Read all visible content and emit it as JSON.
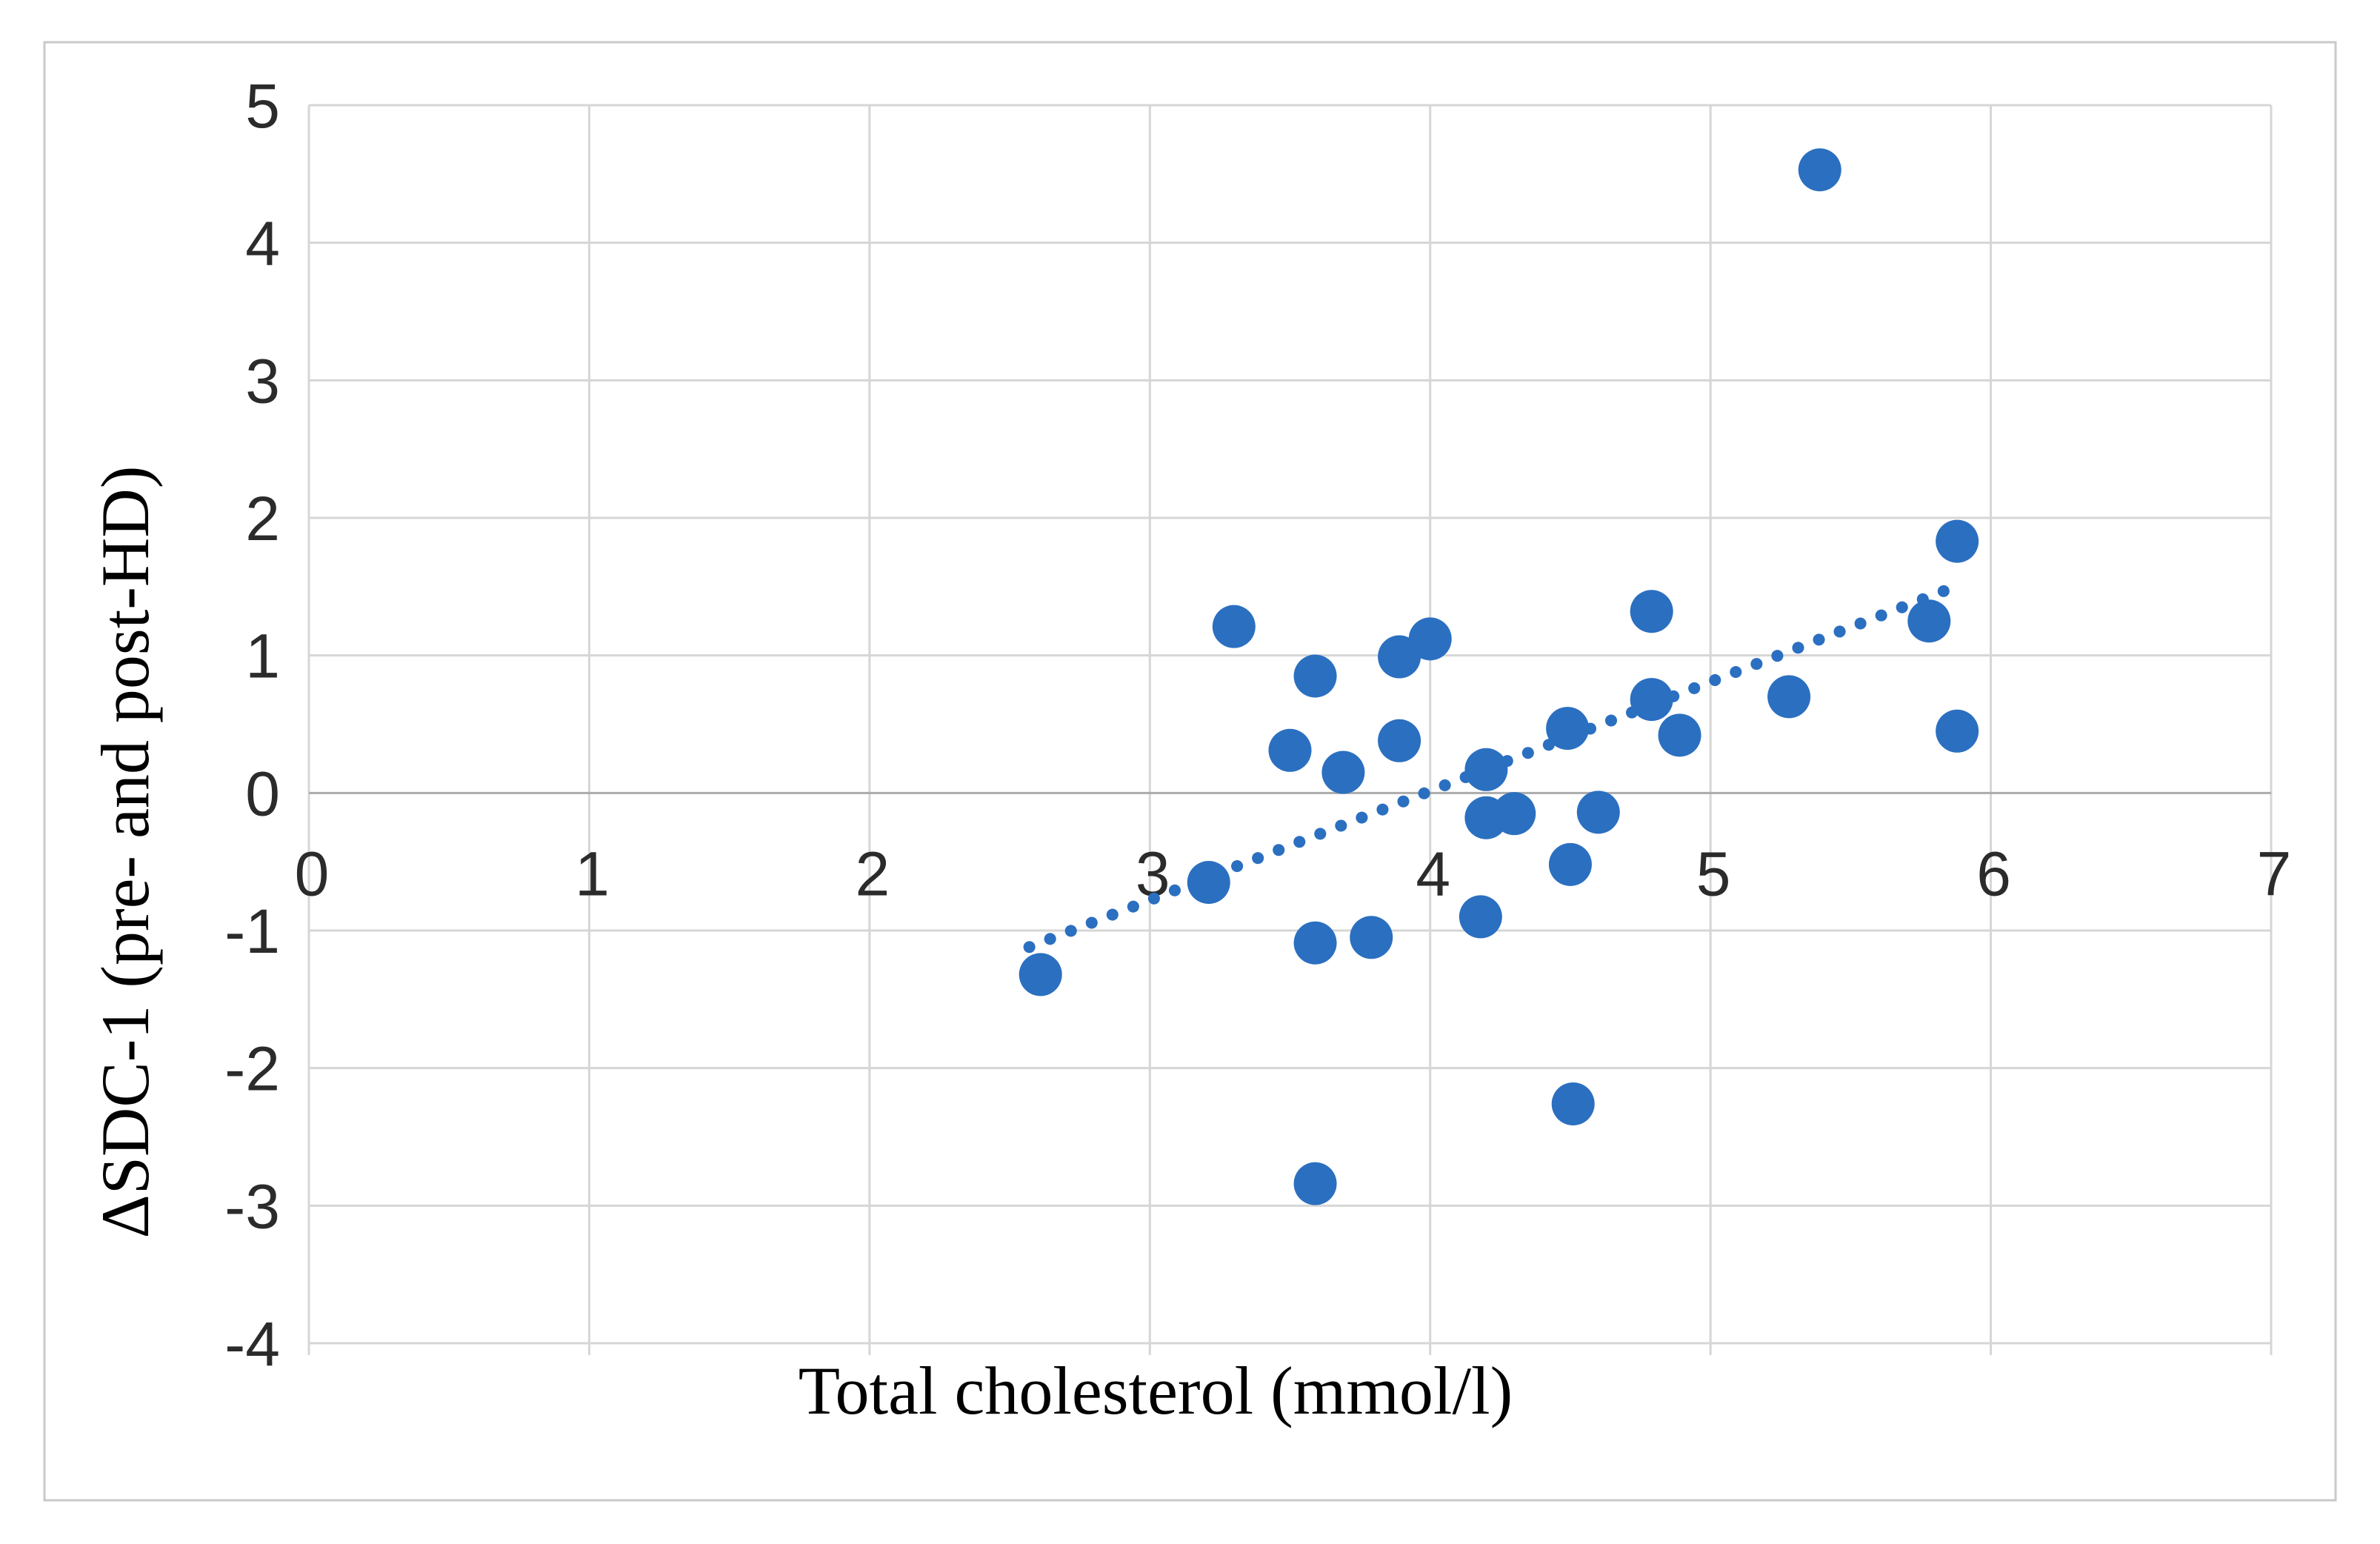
{
  "figure": {
    "background": "#ffffff",
    "border_color": "#c9c9c9"
  },
  "chart_data": {
    "type": "scatter",
    "title": "",
    "xlabel": "Total cholesterol (mmol/l)",
    "ylabel": "ΔSDC-1 (pre- and post-HD)",
    "xlim": [
      0,
      7
    ],
    "ylim": [
      -4,
      5
    ],
    "x_ticks": [
      0,
      1,
      2,
      3,
      4,
      5,
      6,
      7
    ],
    "y_ticks": [
      5,
      4,
      3,
      2,
      1,
      0,
      -1,
      -2,
      -3,
      -4
    ],
    "grid": true,
    "legend_position": "none",
    "marker_color": "#2b6fc0",
    "gridline_color": "#d6d6d6",
    "zero_line_color": "#ababab",
    "tick_label_color": "#2b2b2b",
    "axis_title_color": "#000000",
    "points": [
      [
        2.61,
        -1.32
      ],
      [
        3.21,
        -0.65
      ],
      [
        3.3,
        1.21
      ],
      [
        3.5,
        0.31
      ],
      [
        3.59,
        0.85
      ],
      [
        3.59,
        -1.09
      ],
      [
        3.59,
        -2.84
      ],
      [
        3.69,
        0.15
      ],
      [
        3.79,
        -1.05
      ],
      [
        3.89,
        0.99
      ],
      [
        3.89,
        0.38
      ],
      [
        4.0,
        1.12
      ],
      [
        4.18,
        -0.9
      ],
      [
        4.2,
        0.17
      ],
      [
        4.2,
        -0.18
      ],
      [
        4.3,
        -0.15
      ],
      [
        4.49,
        0.47
      ],
      [
        4.5,
        -0.52
      ],
      [
        4.51,
        -2.26
      ],
      [
        4.6,
        -0.14
      ],
      [
        4.79,
        1.32
      ],
      [
        4.79,
        0.68
      ],
      [
        4.89,
        0.42
      ],
      [
        5.28,
        0.7
      ],
      [
        5.39,
        4.53
      ],
      [
        5.78,
        1.25
      ],
      [
        5.88,
        1.83
      ],
      [
        5.88,
        0.45
      ]
    ],
    "trendline": {
      "style": "dotted",
      "color": "#2b6fc0",
      "x1": 2.57,
      "y1": -1.12,
      "x2": 5.86,
      "y2": 1.49
    }
  }
}
